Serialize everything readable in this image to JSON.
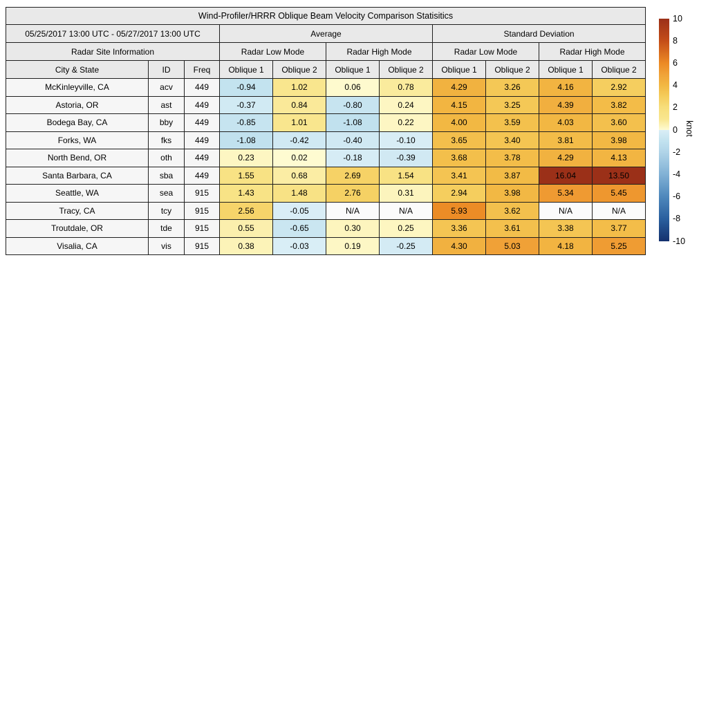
{
  "title": "Wind-Profiler/HRRR Oblique Beam Velocity Comparison Statisitics",
  "header": {
    "date_range": "05/25/2017 13:00 UTC - 05/27/2017 13:00 UTC",
    "site_info": "Radar Site Information",
    "average": "Average",
    "std_dev": "Standard Deviation",
    "low_mode": "Radar Low Mode",
    "high_mode": "Radar High Mode",
    "city": "City & State",
    "id": "ID",
    "freq": "Freq",
    "oblique1": "Oblique 1",
    "oblique2": "Oblique 2"
  },
  "chart_data": {
    "type": "heatmap",
    "title": "Wind-Profiler/HRRR Oblique Beam Velocity Comparison Statisitics",
    "value_unit": "knot",
    "column_groups": [
      "Average / Radar Low Mode / Oblique 1",
      "Average / Radar Low Mode / Oblique 2",
      "Average / Radar High Mode / Oblique 1",
      "Average / Radar High Mode / Oblique 2",
      "Standard Deviation / Radar Low Mode / Oblique 1",
      "Standard Deviation / Radar Low Mode / Oblique 2",
      "Standard Deviation / Radar High Mode / Oblique 1",
      "Standard Deviation / Radar High Mode / Oblique 2"
    ],
    "rows": [
      {
        "city": "McKinleyville, CA",
        "id": "acv",
        "freq": "449",
        "values": [
          "-0.94",
          "1.02",
          "0.06",
          "0.78",
          "4.29",
          "3.26",
          "4.16",
          "2.92"
        ]
      },
      {
        "city": "Astoria, OR",
        "id": "ast",
        "freq": "449",
        "values": [
          "-0.37",
          "0.84",
          "-0.80",
          "0.24",
          "4.15",
          "3.25",
          "4.39",
          "3.82"
        ]
      },
      {
        "city": "Bodega Bay, CA",
        "id": "bby",
        "freq": "449",
        "values": [
          "-0.85",
          "1.01",
          "-1.08",
          "0.22",
          "4.00",
          "3.59",
          "4.03",
          "3.60"
        ]
      },
      {
        "city": "Forks, WA",
        "id": "fks",
        "freq": "449",
        "values": [
          "-1.08",
          "-0.42",
          "-0.40",
          "-0.10",
          "3.65",
          "3.40",
          "3.81",
          "3.98"
        ]
      },
      {
        "city": "North Bend, OR",
        "id": "oth",
        "freq": "449",
        "values": [
          "0.23",
          "0.02",
          "-0.18",
          "-0.39",
          "3.68",
          "3.78",
          "4.29",
          "4.13"
        ]
      },
      {
        "city": "Santa Barbara, CA",
        "id": "sba",
        "freq": "449",
        "values": [
          "1.55",
          "0.68",
          "2.69",
          "1.54",
          "3.41",
          "3.87",
          "16.04",
          "13.50"
        ]
      },
      {
        "city": "Seattle, WA",
        "id": "sea",
        "freq": "915",
        "values": [
          "1.43",
          "1.48",
          "2.76",
          "0.31",
          "2.94",
          "3.98",
          "5.34",
          "5.45"
        ]
      },
      {
        "city": "Tracy, CA",
        "id": "tcy",
        "freq": "915",
        "values": [
          "2.56",
          "-0.05",
          "N/A",
          "N/A",
          "5.93",
          "3.62",
          "N/A",
          "N/A"
        ]
      },
      {
        "city": "Troutdale, OR",
        "id": "tde",
        "freq": "915",
        "values": [
          "0.55",
          "-0.65",
          "0.30",
          "0.25",
          "3.36",
          "3.61",
          "3.38",
          "3.77"
        ]
      },
      {
        "city": "Visalia, CA",
        "id": "vis",
        "freq": "915",
        "values": [
          "0.38",
          "-0.03",
          "0.19",
          "-0.25",
          "4.30",
          "5.03",
          "4.18",
          "5.25"
        ]
      }
    ],
    "colorbar": {
      "label": "knot",
      "min": -10,
      "max": 10,
      "ticks": [
        "10",
        "8",
        "6",
        "4",
        "2",
        "0",
        "-2",
        "-4",
        "-6",
        "-8",
        "-10"
      ],
      "positive_anchors": [
        [
          0,
          "#FEFBD2"
        ],
        [
          1,
          "#F9E68E"
        ],
        [
          2,
          "#F7DE7C"
        ],
        [
          3,
          "#F5CD5C"
        ],
        [
          4,
          "#F2B843"
        ],
        [
          5,
          "#F0A238"
        ],
        [
          6,
          "#EC8A25"
        ],
        [
          8,
          "#C44D18"
        ],
        [
          10,
          "#9B3018"
        ]
      ],
      "negative_anchors": [
        [
          0,
          "#DAEEF6"
        ],
        [
          -1,
          "#C2E2EF"
        ],
        [
          -2,
          "#B0D4E8"
        ],
        [
          -4,
          "#81B1D5"
        ],
        [
          -6,
          "#4E88BC"
        ],
        [
          -8,
          "#2A5F9E"
        ],
        [
          -10,
          "#14316E"
        ]
      ],
      "na_color": "#FBFBFB"
    },
    "styles": {
      "header_bg": "#E9E9E9",
      "label_bg": "#F6F6F6",
      "border": "#1F1F1F"
    }
  }
}
